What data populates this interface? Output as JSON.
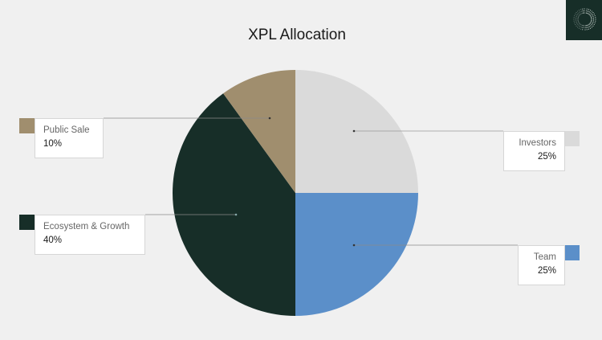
{
  "chart_data": {
    "type": "pie",
    "title": "XPL Allocation",
    "slices": [
      {
        "label": "Investors",
        "value": 25,
        "display": "25%",
        "color": "#dadada"
      },
      {
        "label": "Team",
        "value": 25,
        "display": "25%",
        "color": "#5b8fc9"
      },
      {
        "label": "Ecosystem & Growth",
        "value": 40,
        "display": "40%",
        "color": "#172e28"
      },
      {
        "label": "Public Sale",
        "value": 10,
        "display": "10%",
        "color": "#a08e6e"
      }
    ],
    "start": "top",
    "direction": "clockwise"
  },
  "logo": {
    "icon": "circular-dotted-ring-logo",
    "color": "#172e28"
  }
}
